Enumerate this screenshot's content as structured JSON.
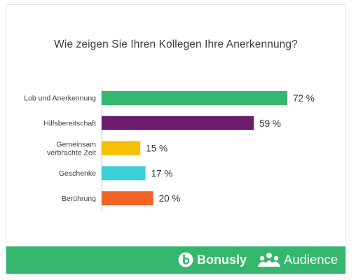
{
  "chart_data": {
    "type": "bar",
    "orientation": "horizontal",
    "title": "Wie zeigen Sie Ihren Kollegen Ihre Anerkennung?",
    "categories": [
      "Lob und Anerkennung",
      "Hilfsbereitschaft",
      "Gemeinsam\nverbrachte Zeit",
      "Geschenke",
      "Berührung"
    ],
    "values": [
      72,
      59,
      15,
      17,
      20
    ],
    "value_labels": [
      "72 %",
      "59 %",
      "15 %",
      "17 %",
      "20 %"
    ],
    "colors": [
      "#35b76d",
      "#6b1d6d",
      "#f5c000",
      "#3ccfd4",
      "#f26427"
    ],
    "xlim": [
      0,
      72
    ],
    "grid": false,
    "legend": "none"
  },
  "footer": {
    "bonusly_label": "Bonusly",
    "audience_label": "Audience",
    "background": "#35b76d"
  }
}
